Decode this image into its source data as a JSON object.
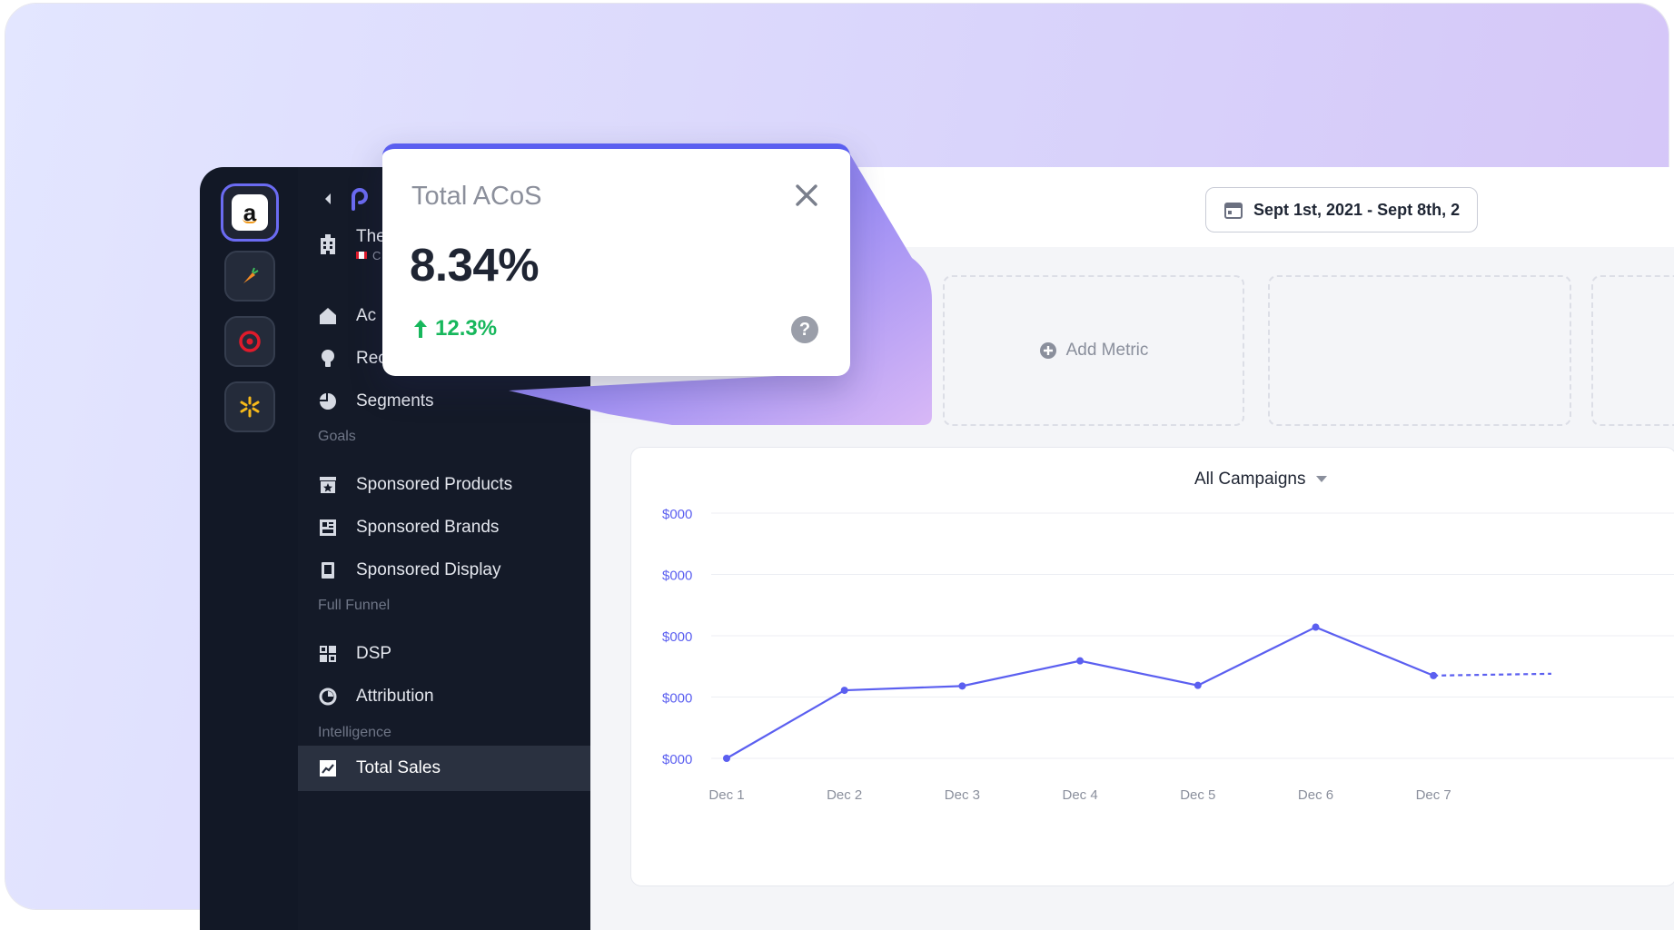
{
  "marketplaces": [
    {
      "name": "amazon-icon",
      "label": "a"
    },
    {
      "name": "carrot-icon"
    },
    {
      "name": "target-icon"
    },
    {
      "name": "walmart-spark-icon"
    }
  ],
  "sidebar": {
    "profile_name": "The",
    "profile_sub": "C",
    "items": [
      {
        "label": "Ac",
        "icon": "home-icon"
      },
      {
        "label": "Recommendations",
        "icon": "lightbulb-icon"
      },
      {
        "label": "Segments",
        "icon": "pie-icon"
      }
    ],
    "goals_header": "Goals",
    "goals": [
      {
        "label": "Sponsored Products",
        "icon": "star-box-icon"
      },
      {
        "label": "Sponsored Brands",
        "icon": "brand-grid-icon"
      },
      {
        "label": "Sponsored Display",
        "icon": "display-icon"
      }
    ],
    "funnel_header": "Full Funnel",
    "funnel": [
      {
        "label": "DSP",
        "icon": "grid-icon"
      },
      {
        "label": "Attribution",
        "icon": "attribution-icon"
      }
    ],
    "intel_header": "Intelligence",
    "intel": [
      {
        "label": "Total Sales",
        "icon": "trend-icon"
      }
    ]
  },
  "header": {
    "date_range": "Sept 1st, 2021 - Sept 8th, 2"
  },
  "metrics": {
    "add_label": "Add Metric"
  },
  "popup": {
    "title": "Total ACoS",
    "value": "8.34%",
    "change": "12.3%"
  },
  "chart_data": {
    "type": "line",
    "title": "All Campaigns",
    "categories": [
      "Dec 1",
      "Dec 2",
      "Dec 3",
      "Dec 4",
      "Dec 5",
      "Dec 6",
      "Dec 7"
    ],
    "y_tick_labels": [
      "$000",
      "$000",
      "$000",
      "$000",
      "$000"
    ],
    "ylim": [
      0,
      4
    ],
    "series": [
      {
        "values": [
          0.0,
          1.11,
          1.18,
          1.59,
          1.19,
          2.14,
          1.35
        ],
        "projected_next": 1.38
      }
    ],
    "colors": {
      "line": "#5b5ff0",
      "grid": "#eceef3",
      "tick": "#5b5ff0"
    },
    "grid": true
  }
}
